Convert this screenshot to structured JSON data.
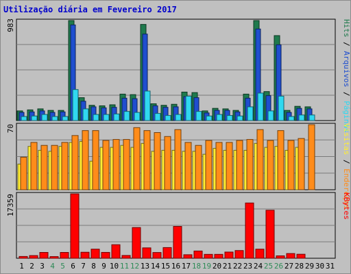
{
  "title": "Utilização diária em Fevereiro 2017",
  "colors": {
    "background": "#c0c0c0",
    "title": "#0000cc",
    "hits": "#1f7a4d",
    "files": "#1f4ecf",
    "pages": "#30d8f0",
    "visits": "#ffee33",
    "sites": "#ff8c1a",
    "kbytes": "#ff0000",
    "weekend_label": "#2e8b57",
    "label": "#000000"
  },
  "chart_data": [
    {
      "type": "bar",
      "panel": "hits",
      "ymax_label": "983",
      "legend": [
        {
          "text": "Hits",
          "color": "#1f7a4d"
        },
        {
          "text": " / ",
          "color": "#000000"
        },
        {
          "text": "Arquivos",
          "color": "#1f4ecf"
        },
        {
          "text": " / ",
          "color": "#000000"
        },
        {
          "text": "Páginas",
          "color": "#30d8f0"
        }
      ],
      "series": [
        {
          "name": "Hits",
          "color": "#1f7a4d",
          "values": [
            95,
            105,
            115,
            100,
            100,
            983,
            225,
            150,
            145,
            155,
            260,
            255,
            945,
            165,
            150,
            160,
            280,
            275,
            95,
            120,
            115,
            100,
            260,
            983,
            285,
            835,
            100,
            140,
            135,
            0,
            0
          ]
        },
        {
          "name": "Arquivos",
          "color": "#1f4ecf",
          "values": [
            80,
            85,
            95,
            80,
            85,
            940,
            190,
            135,
            125,
            130,
            220,
            215,
            850,
            145,
            130,
            135,
            235,
            225,
            75,
            100,
            100,
            85,
            220,
            900,
            245,
            745,
            80,
            120,
            115,
            0,
            0
          ]
        },
        {
          "name": "Páginas",
          "color": "#30d8f0",
          "values": [
            40,
            45,
            60,
            40,
            40,
            305,
            115,
            60,
            60,
            65,
            90,
            80,
            290,
            70,
            50,
            60,
            240,
            90,
            45,
            60,
            50,
            45,
            135,
            270,
            95,
            240,
            40,
            55,
            55,
            0,
            0
          ]
        }
      ]
    },
    {
      "type": "bar",
      "panel": "visits",
      "ymax_label": "70",
      "legend": [
        {
          "text": "Visitas",
          "color": "#ffee33"
        },
        {
          "text": " / ",
          "color": "#000000"
        },
        {
          "text": "Endereços",
          "color": "#ff8c1a"
        }
      ],
      "series": [
        {
          "name": "Visitas",
          "color": "#ffee33",
          "values": [
            26,
            44,
            40,
            39,
            44,
            48,
            49,
            29,
            43,
            43,
            45,
            43,
            47,
            39,
            40,
            40,
            39,
            39,
            36,
            42,
            40,
            40,
            40,
            47,
            43,
            44,
            40,
            43,
            0,
            0,
            0
          ]
        },
        {
          "name": "Endereços",
          "color": "#ff8c1a",
          "values": [
            33,
            48,
            45,
            45,
            48,
            55,
            60,
            60,
            50,
            51,
            51,
            63,
            60,
            58,
            54,
            61,
            48,
            45,
            50,
            48,
            48,
            50,
            51,
            61,
            50,
            60,
            50,
            52,
            66,
            0,
            0
          ]
        }
      ]
    },
    {
      "type": "bar",
      "panel": "kbytes",
      "ymax_label": "17359",
      "legend": [
        {
          "text": "KBytes",
          "color": "#ff0000"
        }
      ],
      "series": [
        {
          "name": "KBytes",
          "color": "#ff0000",
          "values": [
            480,
            720,
            1570,
            450,
            1570,
            17359,
            1620,
            2450,
            1580,
            3650,
            750,
            8280,
            2800,
            1550,
            2880,
            8580,
            950,
            1950,
            1050,
            1050,
            1670,
            2080,
            14900,
            2450,
            12950,
            650,
            1270,
            1080,
            0,
            0,
            0
          ]
        }
      ]
    }
  ],
  "days": [
    "1",
    "2",
    "3",
    "4",
    "5",
    "6",
    "7",
    "8",
    "9",
    "10",
    "11",
    "12",
    "13",
    "14",
    "15",
    "16",
    "17",
    "18",
    "19",
    "20",
    "21",
    "22",
    "23",
    "24",
    "25",
    "26",
    "27",
    "28",
    "29",
    "30",
    "31"
  ],
  "weekend_days": [
    "4",
    "5",
    "11",
    "12",
    "18",
    "19",
    "25",
    "26"
  ]
}
